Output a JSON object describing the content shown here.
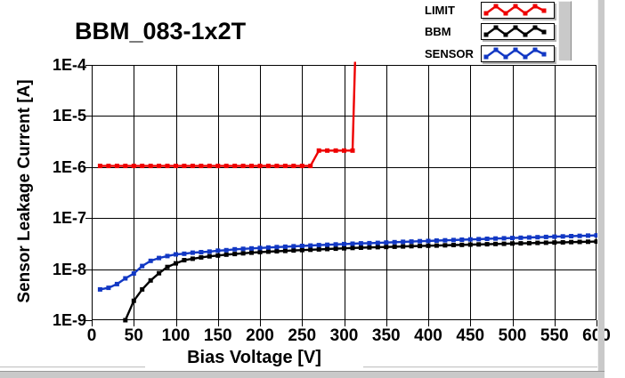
{
  "title": "BBM_083-1x2T",
  "colors": {
    "limit": "#ee0000",
    "bbm": "#000000",
    "sensor": "#1238c4",
    "grid": "#000000",
    "chrome": "#c9c9c9",
    "background": "#ffffff"
  },
  "legend": {
    "items": [
      {
        "label": "LIMIT",
        "color": "#ee0000"
      },
      {
        "label": "BBM",
        "color": "#000000"
      },
      {
        "label": "SENSOR",
        "color": "#1238c4"
      }
    ]
  },
  "axes": {
    "x": {
      "label": "Bias Voltage [V]",
      "ticks": [
        "0",
        "50",
        "100",
        "150",
        "200",
        "250",
        "300",
        "350",
        "400",
        "450",
        "500",
        "550",
        "600"
      ],
      "min": 0,
      "max": 600
    },
    "y": {
      "label": "Sensor Leakage Current [A]",
      "ticks": [
        "1E-4",
        "1E-5",
        "1E-6",
        "1E-7",
        "1E-8",
        "1E-9"
      ],
      "scale": "log",
      "min": 1e-09,
      "max": 0.0001
    }
  },
  "chart_data": {
    "type": "line",
    "title": "BBM_083-1x2T",
    "xlabel": "Bias Voltage [V]",
    "ylabel": "Sensor Leakage Current [A]",
    "x_range": [
      0,
      600
    ],
    "y_scale": "log",
    "y_range": [
      1e-09,
      0.0001
    ],
    "grid": true,
    "legend_position": "top-right",
    "marker": "square",
    "series": [
      {
        "name": "LIMIT",
        "color": "#ee0000",
        "x": [
          10,
          20,
          30,
          40,
          50,
          60,
          70,
          80,
          90,
          100,
          110,
          120,
          130,
          140,
          150,
          160,
          170,
          180,
          190,
          200,
          210,
          220,
          230,
          240,
          250,
          260,
          270,
          280,
          290,
          300,
          310,
          313
        ],
        "y": [
          1.05e-06,
          1.05e-06,
          1.05e-06,
          1.05e-06,
          1.05e-06,
          1.05e-06,
          1.05e-06,
          1.05e-06,
          1.05e-06,
          1.05e-06,
          1.05e-06,
          1.05e-06,
          1.05e-06,
          1.05e-06,
          1.05e-06,
          1.05e-06,
          1.05e-06,
          1.05e-06,
          1.05e-06,
          1.05e-06,
          1.05e-06,
          1.05e-06,
          1.05e-06,
          1.05e-06,
          1.05e-06,
          1.05e-06,
          2.1e-06,
          2.1e-06,
          2.1e-06,
          2.1e-06,
          2.1e-06,
          0.000115
        ]
      },
      {
        "name": "BBM",
        "color": "#000000",
        "x": [
          40,
          50,
          60,
          70,
          80,
          90,
          100,
          110,
          120,
          130,
          140,
          150,
          160,
          170,
          180,
          190,
          200,
          210,
          220,
          230,
          240,
          250,
          260,
          270,
          280,
          290,
          300,
          310,
          320,
          330,
          340,
          350,
          360,
          370,
          380,
          390,
          400,
          410,
          420,
          430,
          440,
          450,
          460,
          470,
          480,
          490,
          500,
          510,
          520,
          530,
          540,
          550,
          560,
          570,
          580,
          590,
          600
        ],
        "y": [
          1e-09,
          2.4e-09,
          4e-09,
          6e-09,
          8.3e-09,
          1.1e-08,
          1.3e-08,
          1.5e-08,
          1.6e-08,
          1.7e-08,
          1.78e-08,
          1.85e-08,
          1.92e-08,
          1.98e-08,
          2.04e-08,
          2.1e-08,
          2.15e-08,
          2.2e-08,
          2.24e-08,
          2.28e-08,
          2.32e-08,
          2.36e-08,
          2.4e-08,
          2.44e-08,
          2.48e-08,
          2.52e-08,
          2.56e-08,
          2.6e-08,
          2.63e-08,
          2.66e-08,
          2.69e-08,
          2.72e-08,
          2.75e-08,
          2.78e-08,
          2.81e-08,
          2.84e-08,
          2.87e-08,
          2.9e-08,
          2.93e-08,
          2.96e-08,
          2.99e-08,
          3.02e-08,
          3.05e-08,
          3.08e-08,
          3.11e-08,
          3.14e-08,
          3.17e-08,
          3.2e-08,
          3.23e-08,
          3.26e-08,
          3.29e-08,
          3.32e-08,
          3.35e-08,
          3.38e-08,
          3.41e-08,
          3.44e-08,
          3.47e-08
        ]
      },
      {
        "name": "SENSOR",
        "color": "#1238c4",
        "x": [
          10,
          20,
          30,
          40,
          50,
          60,
          70,
          80,
          90,
          100,
          110,
          120,
          130,
          140,
          150,
          160,
          170,
          180,
          190,
          200,
          210,
          220,
          230,
          240,
          250,
          260,
          270,
          280,
          290,
          300,
          310,
          320,
          330,
          340,
          350,
          360,
          370,
          380,
          390,
          400,
          410,
          420,
          430,
          440,
          450,
          460,
          470,
          480,
          490,
          500,
          510,
          520,
          530,
          540,
          550,
          560,
          570,
          580,
          590,
          600
        ],
        "y": [
          4e-09,
          4.3e-09,
          5.1e-09,
          6.6e-09,
          8.2e-09,
          1.15e-08,
          1.45e-08,
          1.65e-08,
          1.8e-08,
          1.95e-08,
          2e-08,
          2.1e-08,
          2.15e-08,
          2.2e-08,
          2.3e-08,
          2.35e-08,
          2.45e-08,
          2.5e-08,
          2.55e-08,
          2.6e-08,
          2.65e-08,
          2.7e-08,
          2.75e-08,
          2.8e-08,
          2.85e-08,
          2.9e-08,
          2.95e-08,
          3e-08,
          3.05e-08,
          3.1e-08,
          3.15e-08,
          3.2e-08,
          3.22e-08,
          3.27e-08,
          3.32e-08,
          3.37e-08,
          3.42e-08,
          3.47e-08,
          3.52e-08,
          3.57e-08,
          3.62e-08,
          3.67e-08,
          3.72e-08,
          3.77e-08,
          3.82e-08,
          3.87e-08,
          3.92e-08,
          3.97e-08,
          4.02e-08,
          4.07e-08,
          4.12e-08,
          4.17e-08,
          4.22e-08,
          4.28e-08,
          4.33e-08,
          4.38e-08,
          4.43e-08,
          4.48e-08,
          4.54e-08,
          4.6e-08
        ]
      }
    ]
  }
}
